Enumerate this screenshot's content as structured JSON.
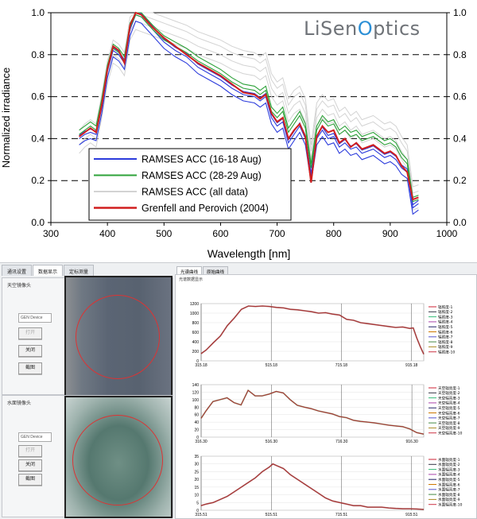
{
  "brand": {
    "text_pre": "LiSen",
    "text_o": "O",
    "text_post": "ptics"
  },
  "chart_data": [
    {
      "type": "line",
      "title": "",
      "xlabel": "Wavelength [nm]",
      "ylabel": "Normalized irradiance",
      "xlim": [
        300,
        1000
      ],
      "ylim": [
        0.0,
        1.0
      ],
      "xticks": [
        300,
        400,
        500,
        600,
        700,
        800,
        900,
        1000
      ],
      "yticks": [
        0.0,
        0.2,
        0.4,
        0.6,
        0.8,
        1.0
      ],
      "grid": "dashed horizontal",
      "legend_position": "bottom-left",
      "series": [
        {
          "name": "RAMSES ACC (16-18 Aug)",
          "color": "#2b3bdc",
          "x": [
            350,
            360,
            370,
            380,
            390,
            400,
            410,
            420,
            430,
            440,
            450,
            460,
            470,
            480,
            500,
            520,
            540,
            560,
            580,
            600,
            620,
            640,
            660,
            670,
            680,
            690,
            700,
            710,
            720,
            730,
            740,
            750,
            760,
            770,
            780,
            790,
            800,
            810,
            820,
            830,
            840,
            850,
            860,
            870,
            880,
            890,
            900,
            910,
            920,
            930,
            940,
            950
          ],
          "y": [
            0.4,
            0.42,
            0.43,
            0.42,
            0.55,
            0.72,
            0.82,
            0.8,
            0.76,
            0.92,
            0.99,
            0.98,
            0.95,
            0.92,
            0.86,
            0.82,
            0.79,
            0.74,
            0.71,
            0.68,
            0.64,
            0.61,
            0.6,
            0.58,
            0.6,
            0.5,
            0.46,
            0.48,
            0.38,
            0.42,
            0.46,
            0.4,
            0.22,
            0.4,
            0.44,
            0.4,
            0.41,
            0.36,
            0.38,
            0.35,
            0.36,
            0.33,
            0.34,
            0.35,
            0.33,
            0.31,
            0.32,
            0.3,
            0.26,
            0.24,
            0.07,
            0.09
          ]
        },
        {
          "name": "RAMSES ACC (28-29 Aug)",
          "color": "#2ea23a",
          "x": [
            350,
            360,
            370,
            380,
            390,
            400,
            410,
            420,
            430,
            440,
            450,
            460,
            470,
            480,
            500,
            520,
            540,
            560,
            580,
            600,
            620,
            640,
            660,
            670,
            680,
            690,
            700,
            710,
            720,
            730,
            740,
            750,
            760,
            770,
            780,
            790,
            800,
            810,
            820,
            830,
            840,
            850,
            860,
            870,
            880,
            890,
            900,
            910,
            920,
            930,
            940,
            950
          ],
          "y": [
            0.42,
            0.44,
            0.46,
            0.44,
            0.57,
            0.73,
            0.83,
            0.81,
            0.77,
            0.93,
            0.99,
            0.98,
            0.95,
            0.92,
            0.87,
            0.84,
            0.81,
            0.77,
            0.74,
            0.71,
            0.67,
            0.64,
            0.63,
            0.61,
            0.63,
            0.53,
            0.5,
            0.53,
            0.43,
            0.47,
            0.51,
            0.45,
            0.26,
            0.44,
            0.49,
            0.46,
            0.47,
            0.42,
            0.44,
            0.41,
            0.42,
            0.39,
            0.4,
            0.41,
            0.39,
            0.37,
            0.38,
            0.36,
            0.31,
            0.28,
            0.1,
            0.11
          ]
        },
        {
          "name": "RAMSES ACC (all data)",
          "color": "#d3d3d3",
          "x": [
            350,
            360,
            370,
            380,
            390,
            400,
            410,
            420,
            430,
            440,
            450,
            460,
            470,
            480,
            500,
            520,
            540,
            560,
            580,
            600,
            620,
            640,
            660,
            670,
            680,
            690,
            700,
            710,
            720,
            730,
            740,
            750,
            760,
            770,
            780,
            790,
            800,
            810,
            820,
            830,
            840,
            850,
            860,
            870,
            880,
            890,
            900,
            910,
            920,
            930,
            940,
            950
          ],
          "y": [
            0.41,
            0.44,
            0.46,
            0.44,
            0.58,
            0.74,
            0.84,
            0.82,
            0.78,
            0.95,
            1.0,
            0.99,
            0.98,
            0.97,
            0.95,
            0.93,
            0.91,
            0.88,
            0.86,
            0.84,
            0.81,
            0.79,
            0.78,
            0.76,
            0.78,
            0.68,
            0.64,
            0.66,
            0.56,
            0.6,
            0.62,
            0.56,
            0.34,
            0.54,
            0.58,
            0.55,
            0.56,
            0.5,
            0.52,
            0.48,
            0.5,
            0.46,
            0.47,
            0.48,
            0.46,
            0.44,
            0.45,
            0.43,
            0.38,
            0.34,
            0.14,
            0.15
          ]
        },
        {
          "name": "Grenfell and Perovich (2004)",
          "color": "#d11e1e",
          "x": [
            350,
            360,
            370,
            380,
            390,
            400,
            410,
            420,
            430,
            440,
            450,
            460,
            470,
            480,
            500,
            520,
            540,
            560,
            580,
            600,
            620,
            640,
            660,
            670,
            680,
            690,
            700,
            710,
            720,
            730,
            740,
            750,
            760,
            770,
            780,
            790,
            800,
            810,
            820,
            830,
            840,
            850,
            860,
            870,
            880,
            890,
            900,
            910,
            920,
            930,
            940,
            950
          ],
          "y": [
            0.41,
            0.43,
            0.45,
            0.43,
            0.56,
            0.73,
            0.84,
            0.82,
            0.76,
            0.94,
            1.0,
            0.99,
            0.96,
            0.93,
            0.88,
            0.84,
            0.8,
            0.76,
            0.73,
            0.7,
            0.66,
            0.62,
            0.61,
            0.59,
            0.61,
            0.52,
            0.48,
            0.5,
            0.4,
            0.44,
            0.47,
            0.41,
            0.19,
            0.41,
            0.46,
            0.43,
            0.44,
            0.38,
            0.4,
            0.36,
            0.38,
            0.35,
            0.36,
            0.37,
            0.35,
            0.33,
            0.34,
            0.32,
            0.27,
            0.24,
            0.11,
            0.12
          ]
        }
      ]
    },
    {
      "type": "line",
      "xlim": [
        315.18,
        950
      ],
      "ylim": [
        0,
        1200
      ],
      "xticks": [
        "315.18",
        "515.18",
        "715.18",
        "915.18"
      ],
      "yticks": [
        0,
        200,
        400,
        600,
        800,
        1000,
        1200
      ],
      "legend": [
        "辐照度-1",
        "辐照度-2",
        "辐照度-3",
        "辐照度-4",
        "辐照度-5",
        "辐照度-6",
        "辐照度-7",
        "辐照度-8",
        "辐照度-9",
        "辐照度-10"
      ],
      "series": [
        {
          "name": "",
          "color": "#a83232",
          "x": [
            315,
            330,
            350,
            370,
            390,
            410,
            430,
            450,
            470,
            490,
            510,
            530,
            550,
            570,
            590,
            610,
            630,
            650,
            670,
            690,
            710,
            730,
            750,
            770,
            790,
            810,
            830,
            850,
            870,
            890,
            910,
            920,
            930,
            940,
            950
          ],
          "y": [
            150,
            230,
            380,
            520,
            740,
            900,
            1080,
            1150,
            1140,
            1150,
            1140,
            1120,
            1110,
            1080,
            1070,
            1050,
            1030,
            1000,
            1010,
            980,
            960,
            870,
            850,
            800,
            780,
            760,
            740,
            720,
            700,
            710,
            680,
            690,
            480,
            300,
            140
          ]
        }
      ]
    },
    {
      "type": "line",
      "xlim": [
        316.3,
        950
      ],
      "ylim": [
        0,
        140
      ],
      "xticks": [
        "316.30",
        "516.30",
        "716.30",
        "916.30"
      ],
      "yticks": [
        0,
        20,
        40,
        60,
        80,
        100,
        120,
        140
      ],
      "legend": [
        "天空辐亮度-1",
        "天空辐亮度-2",
        "天空辐亮度-3",
        "天空辐亮度-4",
        "天空辐亮度-5",
        "天空辐亮度-6",
        "天空辐亮度-7",
        "天空辐亮度-8",
        "天空辐亮度-9",
        "天空辐亮度-10"
      ],
      "series": [
        {
          "name": "",
          "color": "#a83232",
          "x": [
            316,
            330,
            350,
            370,
            390,
            410,
            430,
            450,
            470,
            490,
            510,
            530,
            550,
            570,
            590,
            610,
            630,
            650,
            670,
            690,
            710,
            730,
            750,
            770,
            790,
            810,
            830,
            850,
            870,
            890,
            910,
            930,
            950
          ],
          "y": [
            50,
            70,
            95,
            100,
            105,
            92,
            86,
            125,
            110,
            110,
            115,
            122,
            118,
            100,
            85,
            80,
            76,
            70,
            66,
            62,
            55,
            52,
            45,
            42,
            40,
            38,
            35,
            32,
            30,
            28,
            22,
            12,
            8
          ]
        }
      ]
    },
    {
      "type": "line",
      "xlim": [
        315.51,
        950
      ],
      "ylim": [
        0,
        35
      ],
      "xticks": [
        "315.51",
        "515.51",
        "715.51",
        "915.51"
      ],
      "yticks": [
        0,
        5,
        10,
        15,
        20,
        25,
        30,
        35
      ],
      "legend": [
        "水面辐亮度-1",
        "水面辐亮度-2",
        "水面辐亮度-3",
        "水面辐亮度-4",
        "水面辐亮度-5",
        "水面辐亮度-6",
        "水面辐亮度-7",
        "水面辐亮度-8",
        "水面辐亮度-9",
        "水面辐亮度-10"
      ],
      "series": [
        {
          "name": "",
          "color": "#a83232",
          "x": [
            315,
            330,
            350,
            370,
            390,
            410,
            430,
            450,
            470,
            490,
            510,
            520,
            530,
            550,
            570,
            590,
            610,
            630,
            650,
            670,
            690,
            710,
            730,
            750,
            770,
            790,
            810,
            830,
            850,
            870,
            890,
            910,
            930,
            950
          ],
          "y": [
            3,
            4,
            5,
            7,
            9,
            12,
            15,
            18,
            21,
            25,
            28,
            30,
            29,
            27,
            23,
            20,
            17,
            14,
            11,
            8,
            6,
            5,
            4,
            3,
            3,
            2,
            2,
            2,
            1.5,
            1.2,
            1,
            1,
            0.8,
            0.5
          ]
        }
      ]
    }
  ],
  "software": {
    "tabs": [
      "通讯设置",
      "数据显示",
      "定标测量"
    ],
    "sub_tabs": [
      "光谱曲线",
      "原始曲线"
    ],
    "chart_panel_title": "光谱数据显示",
    "sky_panel": {
      "title": "天空镜像头",
      "device": "GEN Device",
      "btn_open": "打开",
      "btn_close": "关闭",
      "btn_capture": "截图"
    },
    "water_panel": {
      "title": "水面镜像头",
      "device": "GEN Device",
      "btn_open": "打开",
      "btn_close": "关闭",
      "btn_capture": "截图"
    }
  }
}
